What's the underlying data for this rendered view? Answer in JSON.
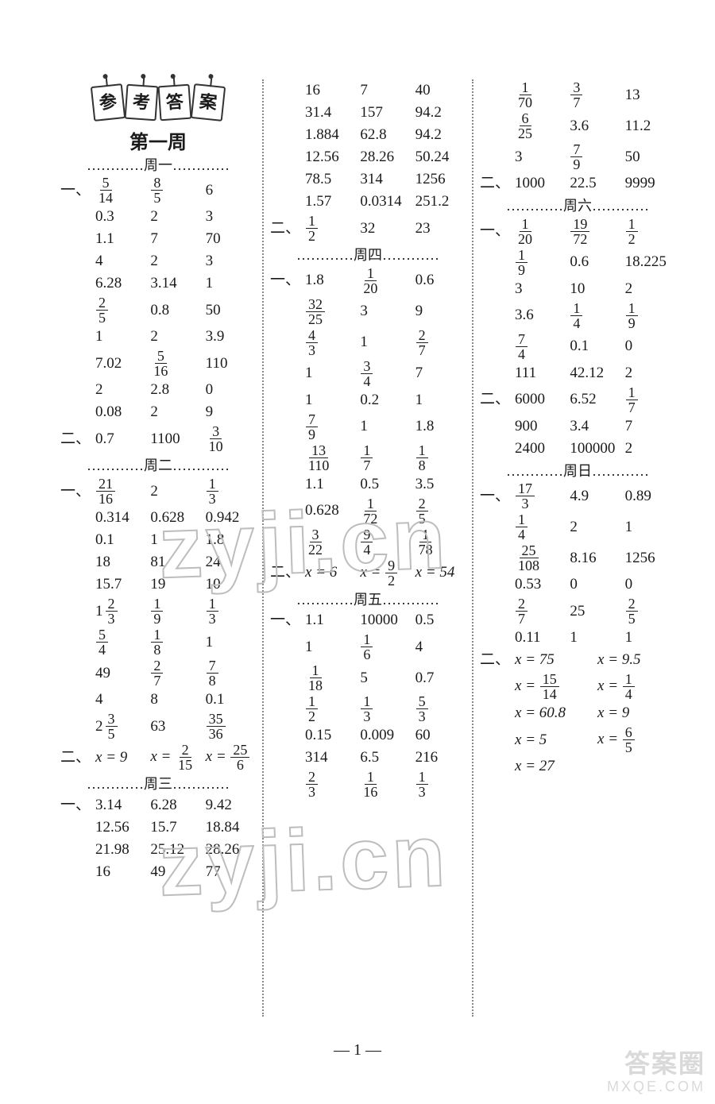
{
  "page_number_text": "— 1 —",
  "banner_chars": [
    "参",
    "考",
    "答",
    "案"
  ],
  "week_title": "第一周",
  "watermark_text": "zyji.cn",
  "corner_watermark_line1": "答案圈",
  "corner_watermark_line2": "MXQE.COM",
  "days": {
    "mon": "…………周一…………",
    "tue": "…………周二…………",
    "wed": "…………周三…………",
    "thu": "…………周四…………",
    "fri": "…………周五…………",
    "sat": "…………周六…………",
    "sun": "…………周日…………"
  },
  "labels": {
    "one": "一、",
    "two": "二、"
  },
  "col1": {
    "mon1": [
      [
        {
          "f": [
            5,
            14
          ]
        },
        {
          "f": [
            8,
            5
          ]
        },
        "6"
      ],
      [
        "0.3",
        "2",
        "3"
      ],
      [
        "1.1",
        "7",
        "70"
      ],
      [
        "4",
        "2",
        "3"
      ],
      [
        "6.28",
        "3.14",
        "1"
      ],
      [
        {
          "f": [
            2,
            5
          ]
        },
        "0.8",
        "50"
      ],
      [
        "1",
        "2",
        "3.9"
      ],
      [
        "7.02",
        {
          "f": [
            5,
            16
          ]
        },
        "110"
      ],
      [
        "2",
        "2.8",
        "0"
      ],
      [
        "0.08",
        "2",
        "9"
      ]
    ],
    "mon2": [
      [
        "0.7",
        "1100",
        {
          "f": [
            3,
            10
          ]
        }
      ]
    ],
    "tue1": [
      [
        {
          "f": [
            21,
            16
          ]
        },
        "2",
        {
          "f": [
            1,
            3
          ]
        }
      ],
      [
        "0.314",
        "0.628",
        "0.942"
      ],
      [
        "0.1",
        "1",
        "1.8"
      ],
      [
        "18",
        "81",
        "24"
      ],
      [
        "15.7",
        "19",
        "10"
      ],
      [
        {
          "m": [
            1,
            2,
            3
          ]
        },
        {
          "f": [
            1,
            9
          ]
        },
        {
          "f": [
            1,
            3
          ]
        }
      ],
      [
        {
          "f": [
            5,
            4
          ]
        },
        {
          "f": [
            1,
            8
          ]
        },
        "1"
      ],
      [
        "49",
        {
          "f": [
            2,
            7
          ]
        },
        {
          "f": [
            7,
            8
          ]
        }
      ],
      [
        "4",
        "8",
        "0.1"
      ],
      [
        {
          "m": [
            2,
            3,
            5
          ]
        },
        "63",
        {
          "f": [
            35,
            36
          ]
        }
      ]
    ],
    "tue2": [
      [
        {
          "eq": "x=9"
        },
        {
          "eqf": {
            "lhs": "x=",
            "n": 2,
            "d": 15
          }
        },
        {
          "eqf": {
            "lhs": "x=",
            "n": 25,
            "d": 6
          }
        }
      ]
    ],
    "wed1": [
      [
        "3.14",
        "6.28",
        "9.42"
      ],
      [
        "12.56",
        "15.7",
        "18.84"
      ],
      [
        "21.98",
        "25.12",
        "28.26"
      ],
      [
        "16",
        "49",
        "77"
      ]
    ]
  },
  "col2": {
    "wed1_cont": [
      [
        "16",
        "7",
        "40"
      ],
      [
        "31.4",
        "157",
        "94.2"
      ],
      [
        "1.884",
        "62.8",
        "94.2"
      ],
      [
        "12.56",
        "28.26",
        "50.24"
      ],
      [
        "78.5",
        "314",
        "1256"
      ],
      [
        "1.57",
        "0.0314",
        "251.2"
      ]
    ],
    "wed2": [
      [
        {
          "f": [
            1,
            2
          ]
        },
        "32",
        "23"
      ]
    ],
    "thu1": [
      [
        "1.8",
        {
          "f": [
            1,
            20
          ]
        },
        "0.6"
      ],
      [
        {
          "f": [
            32,
            25
          ]
        },
        "3",
        "9"
      ],
      [
        {
          "f": [
            4,
            3
          ]
        },
        "1",
        {
          "f": [
            2,
            7
          ]
        }
      ],
      [
        "1",
        {
          "f": [
            3,
            4
          ]
        },
        "7"
      ],
      [
        "1",
        "0.2",
        "1"
      ],
      [
        {
          "f": [
            7,
            9
          ]
        },
        "1",
        "1.8"
      ],
      [
        {
          "f": [
            13,
            110
          ]
        },
        {
          "f": [
            1,
            7
          ]
        },
        {
          "f": [
            1,
            8
          ]
        }
      ],
      [
        "1.1",
        "0.5",
        "3.5"
      ],
      [
        "0.628",
        {
          "f": [
            1,
            72
          ]
        },
        {
          "f": [
            2,
            5
          ]
        }
      ],
      [
        {
          "f": [
            3,
            22
          ]
        },
        {
          "f": [
            9,
            4
          ]
        },
        {
          "f": [
            1,
            78
          ]
        }
      ]
    ],
    "thu2": [
      [
        {
          "eq": "x=6"
        },
        {
          "eqf": {
            "lhs": "x=",
            "n": 9,
            "d": 2
          }
        },
        {
          "eq": "x=54"
        }
      ]
    ],
    "fri1": [
      [
        "1.1",
        "10000",
        "0.5"
      ],
      [
        "1",
        {
          "f": [
            1,
            6
          ]
        },
        "4"
      ],
      [
        {
          "f": [
            1,
            18
          ]
        },
        "5",
        "0.7"
      ],
      [
        {
          "f": [
            1,
            2
          ]
        },
        {
          "f": [
            1,
            3
          ]
        },
        {
          "f": [
            5,
            3
          ]
        }
      ],
      [
        "0.15",
        "0.009",
        "60"
      ],
      [
        "314",
        "6.5",
        "216"
      ],
      [
        {
          "f": [
            2,
            3
          ]
        },
        {
          "f": [
            1,
            16
          ]
        },
        {
          "f": [
            1,
            3
          ]
        }
      ]
    ]
  },
  "col3": {
    "fri1_cont": [
      [
        {
          "f": [
            1,
            70
          ]
        },
        {
          "f": [
            3,
            7
          ]
        },
        "13"
      ],
      [
        {
          "f": [
            6,
            25
          ]
        },
        "3.6",
        "11.2"
      ],
      [
        "3",
        {
          "f": [
            7,
            9
          ]
        },
        "50"
      ]
    ],
    "fri2": [
      [
        "1000",
        "22.5",
        "9999"
      ]
    ],
    "sat1": [
      [
        {
          "f": [
            1,
            20
          ]
        },
        {
          "f": [
            19,
            72
          ]
        },
        {
          "f": [
            1,
            2
          ]
        }
      ],
      [
        {
          "f": [
            1,
            9
          ]
        },
        "0.6",
        "18.225"
      ],
      [
        "3",
        "10",
        "2"
      ],
      [
        "3.6",
        {
          "f": [
            1,
            4
          ]
        },
        {
          "f": [
            1,
            9
          ]
        }
      ],
      [
        {
          "f": [
            7,
            4
          ]
        },
        "0.1",
        "0"
      ],
      [
        "111",
        "42.12",
        "2"
      ]
    ],
    "sat2": [
      [
        "6000",
        "6.52",
        {
          "f": [
            1,
            7
          ]
        }
      ],
      [
        "900",
        "3.4",
        "7"
      ],
      [
        "2400",
        "100000",
        "2"
      ]
    ],
    "sun1": [
      [
        {
          "f": [
            17,
            3
          ]
        },
        "4.9",
        "0.89"
      ],
      [
        {
          "f": [
            1,
            4
          ]
        },
        "2",
        "1"
      ],
      [
        {
          "f": [
            25,
            108
          ]
        },
        "8.16",
        "1256"
      ],
      [
        "0.53",
        "0",
        "0"
      ],
      [
        {
          "f": [
            2,
            7
          ]
        },
        "25",
        {
          "f": [
            2,
            5
          ]
        }
      ],
      [
        "0.11",
        "1",
        "1"
      ]
    ],
    "sun2": [
      [
        {
          "eq": "x=75"
        },
        {
          "eq": "x=9.5"
        }
      ],
      [
        {
          "eqf": {
            "lhs": "x=",
            "n": 15,
            "d": 14
          }
        },
        {
          "eqf": {
            "lhs": "x=",
            "n": 1,
            "d": 4
          }
        }
      ],
      [
        {
          "eq": "x=60.8"
        },
        {
          "eq": "x=9"
        }
      ],
      [
        {
          "eq": "x=5"
        },
        {
          "eqf": {
            "lhs": "x=",
            "n": 6,
            "d": 5
          }
        }
      ],
      [
        {
          "eq": "x=27"
        },
        ""
      ]
    ]
  }
}
